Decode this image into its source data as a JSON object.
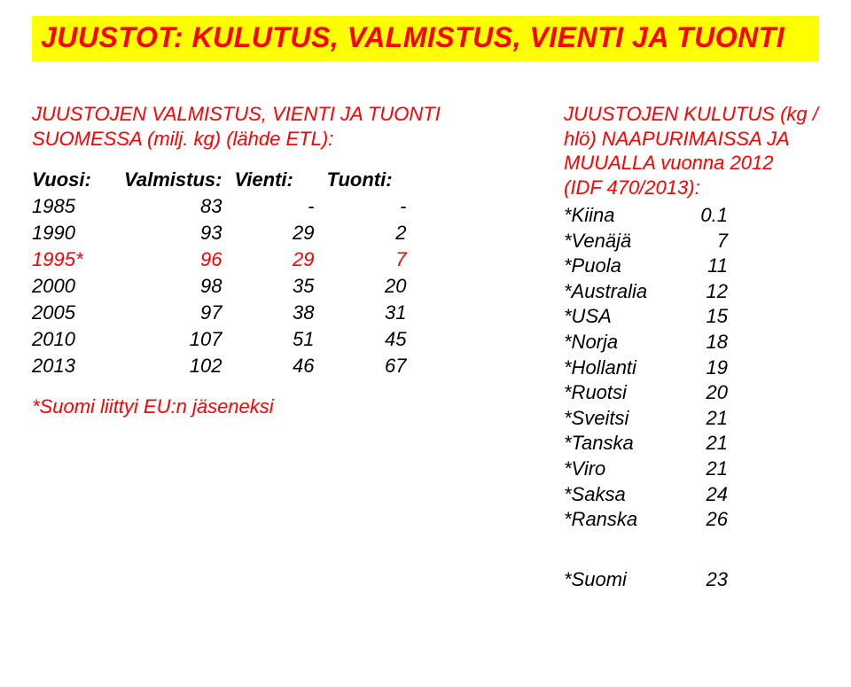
{
  "title": "JUUSTOT: KULUTUS, VALMISTUS, VIENTI JA TUONTI",
  "left": {
    "intro_line1": "JUUSTOJEN VALMISTUS, VIENTI JA TUONTI",
    "intro_line2": "SUOMESSA (milj. kg) (lähde ETL):",
    "headers": {
      "c0": "Vuosi:",
      "c1": "Valmistus:",
      "c2": "Vienti:",
      "c3": "Tuonti:"
    },
    "rows": [
      {
        "year": "1985",
        "valmistus": "83",
        "vienti": "-",
        "tuonti": "-",
        "highlight": false
      },
      {
        "year": "1990",
        "valmistus": "93",
        "vienti": "29",
        "tuonti": "2",
        "highlight": false
      },
      {
        "year": "1995*",
        "valmistus": "96",
        "vienti": "29",
        "tuonti": "7",
        "highlight": true
      },
      {
        "year": "2000",
        "valmistus": "98",
        "vienti": "35",
        "tuonti": "20",
        "highlight": false
      },
      {
        "year": "2005",
        "valmistus": "97",
        "vienti": "38",
        "tuonti": "31",
        "highlight": false
      },
      {
        "year": "2010",
        "valmistus": "107",
        "vienti": "51",
        "tuonti": "45",
        "highlight": false
      },
      {
        "year": "2013",
        "valmistus": "102",
        "vienti": "46",
        "tuonti": "67",
        "highlight": false
      }
    ],
    "footnote": "*Suomi liittyi EU:n jäseneksi"
  },
  "right": {
    "head_l1": "JUUSTOJEN KULUTUS (kg /",
    "head_l2": "hlö) NAAPURIMAISSA JA",
    "head_l3": "MUUALLA vuonna 2012",
    "head_l4": "(IDF 470/2013):",
    "countries": [
      {
        "label": "*Kiina",
        "val": "0.1"
      },
      {
        "label": "*Venäjä",
        "val": "7"
      },
      {
        "label": "*Puola",
        "val": "11"
      },
      {
        "label": "*Australia",
        "val": "12"
      },
      {
        "label": "*USA",
        "val": "15"
      },
      {
        "label": "*Norja",
        "val": "18"
      },
      {
        "label": "*Hollanti",
        "val": "19"
      },
      {
        "label": "*Ruotsi",
        "val": "20"
      },
      {
        "label": "*Sveitsi",
        "val": "21"
      },
      {
        "label": "*Tanska",
        "val": "21"
      },
      {
        "label": "*Viro",
        "val": "21"
      },
      {
        "label": "*Saksa",
        "val": "24"
      },
      {
        "label": "*Ranska",
        "val": "26"
      }
    ],
    "suomi": {
      "label": "*Suomi",
      "val": "23"
    }
  },
  "colors": {
    "title_bg": "#ffff00",
    "accent": "#ff0000",
    "text": "#000000",
    "page_bg": "#ffffff"
  },
  "typography": {
    "title_fontsize": 32,
    "body_fontsize": 22,
    "font_family": "Arial",
    "style": "italic"
  }
}
